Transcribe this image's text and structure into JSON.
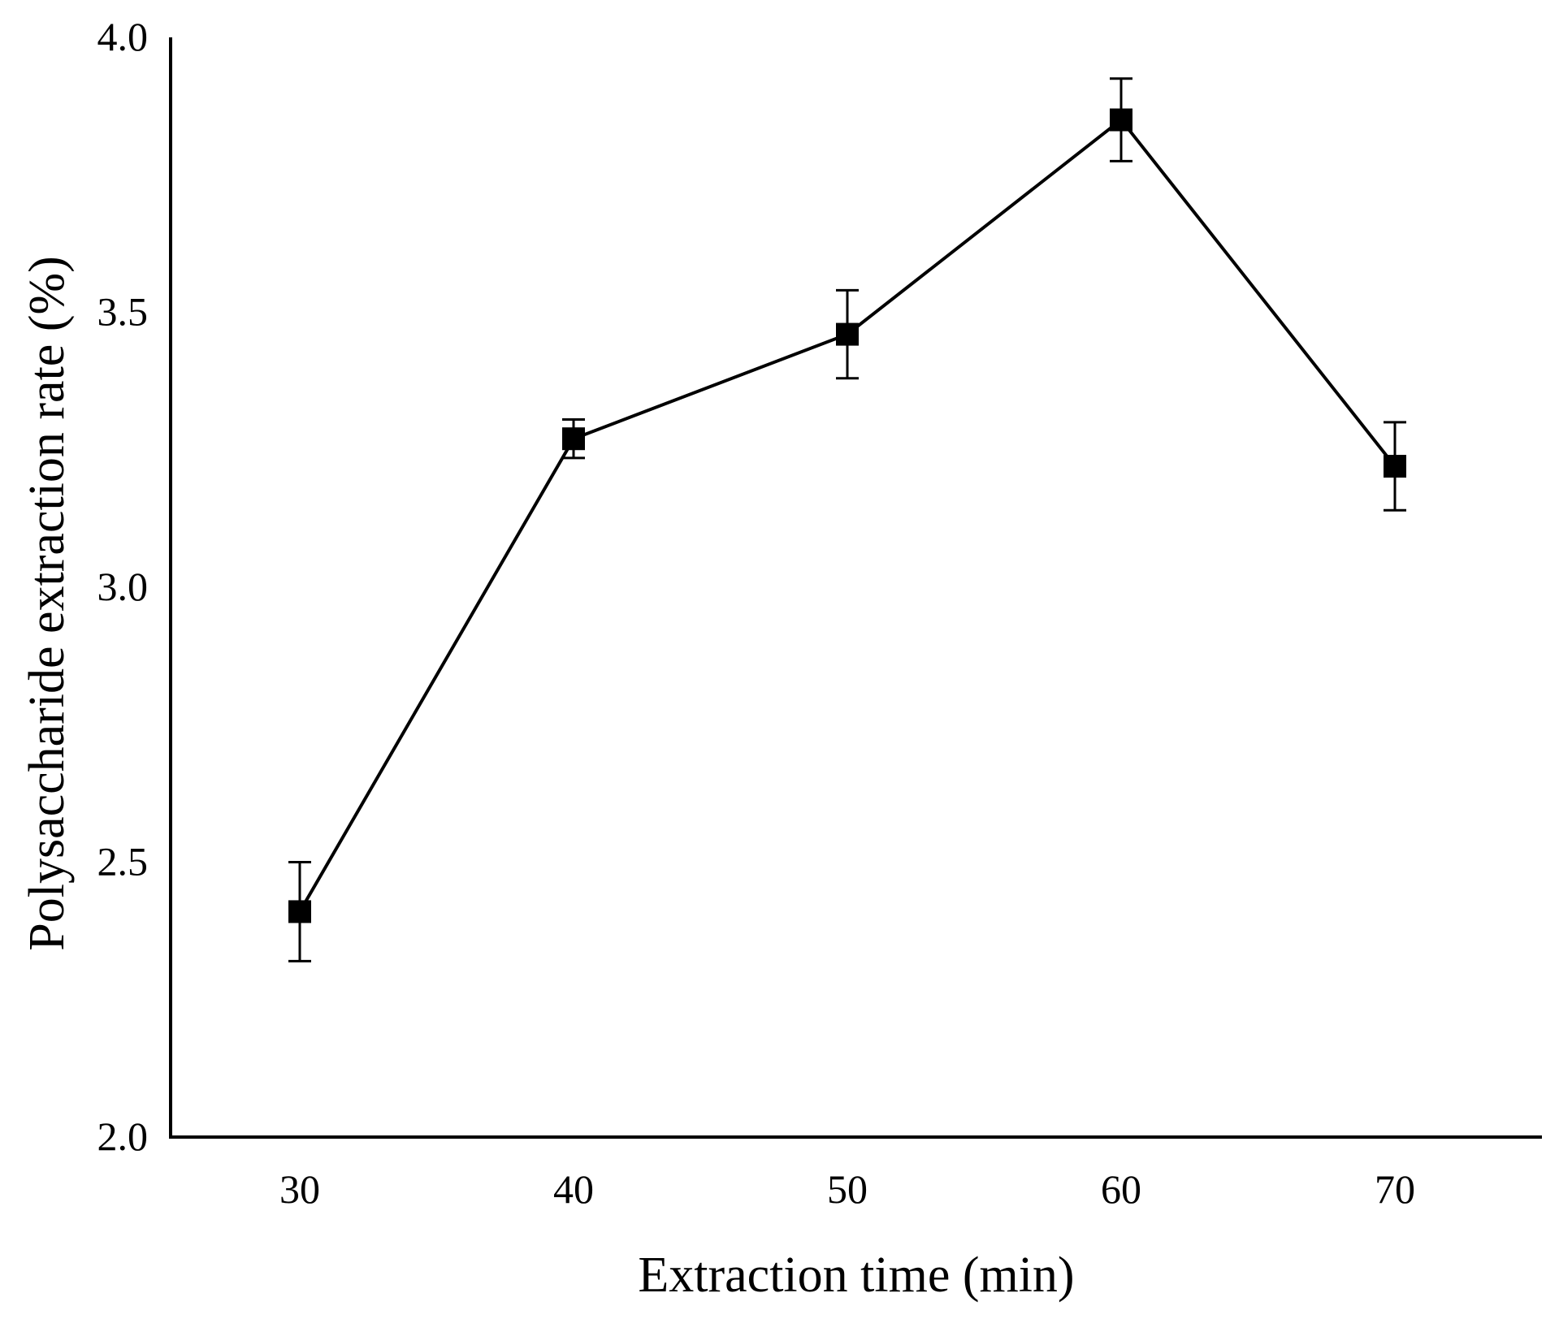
{
  "chart_data": {
    "type": "line",
    "title": "",
    "xlabel": "Extraction time (min)",
    "ylabel": "Polysaccharide extraction rate (%)",
    "categories": [
      "30",
      "40",
      "50",
      "60",
      "70"
    ],
    "series": [
      {
        "name": "Polysaccharide extraction rate",
        "values": [
          2.41,
          3.27,
          3.46,
          3.85,
          3.22
        ],
        "error": [
          0.09,
          0.035,
          0.08,
          0.075,
          0.08
        ]
      }
    ],
    "ylim": [
      2.0,
      4.0
    ],
    "yticks": [
      "2.0",
      "2.5",
      "3.0",
      "3.5",
      "4.0"
    ],
    "grid": false,
    "legend": "none",
    "marker": "square",
    "color": "#000000"
  }
}
